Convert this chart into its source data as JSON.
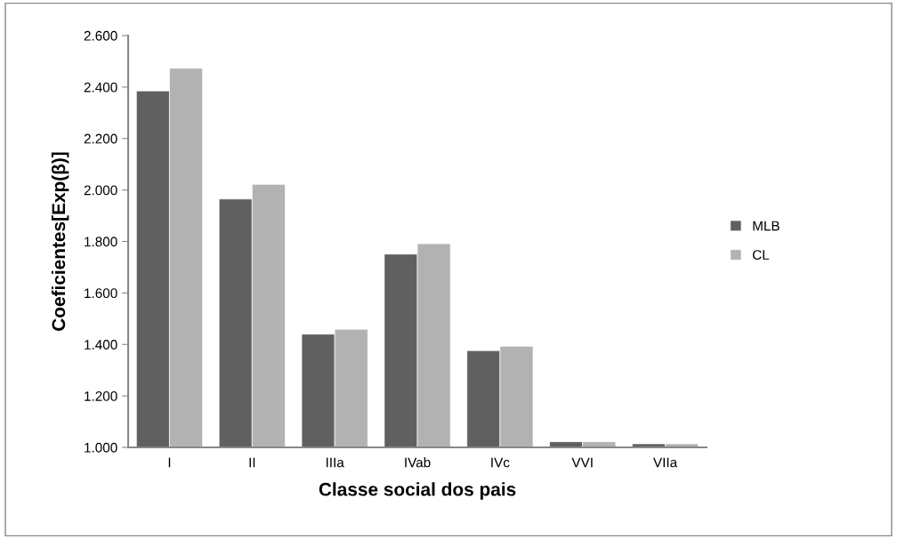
{
  "chart_data": {
    "type": "bar",
    "xlabel": "Classe social dos pais",
    "ylabel": "Coeficientes[Exp(β)]",
    "categories": [
      "I",
      "II",
      "IIIa",
      "IVab",
      "IVc",
      "VVI",
      "VIIa"
    ],
    "series": [
      {
        "name": "MLB",
        "color": "#606060",
        "values": [
          2.385,
          1.965,
          1.44,
          1.751,
          1.376,
          1.022,
          1.014
        ]
      },
      {
        "name": "CL",
        "color": "#b2b2b2",
        "values": [
          2.473,
          2.022,
          1.459,
          1.791,
          1.393,
          1.022,
          1.014
        ]
      }
    ],
    "ylim": [
      1.0,
      2.6
    ],
    "yticks": [
      {
        "value": 1.0,
        "label": "1.000"
      },
      {
        "value": 1.2,
        "label": "1.200"
      },
      {
        "value": 1.4,
        "label": "1.400"
      },
      {
        "value": 1.6,
        "label": "1.600"
      },
      {
        "value": 1.8,
        "label": "1.800"
      },
      {
        "value": 2.0,
        "label": "2.000"
      },
      {
        "value": 2.2,
        "label": "2.200"
      },
      {
        "value": 2.4,
        "label": "2.400"
      },
      {
        "value": 2.6,
        "label": "2.600"
      }
    ],
    "grid": false,
    "legend": "right"
  }
}
